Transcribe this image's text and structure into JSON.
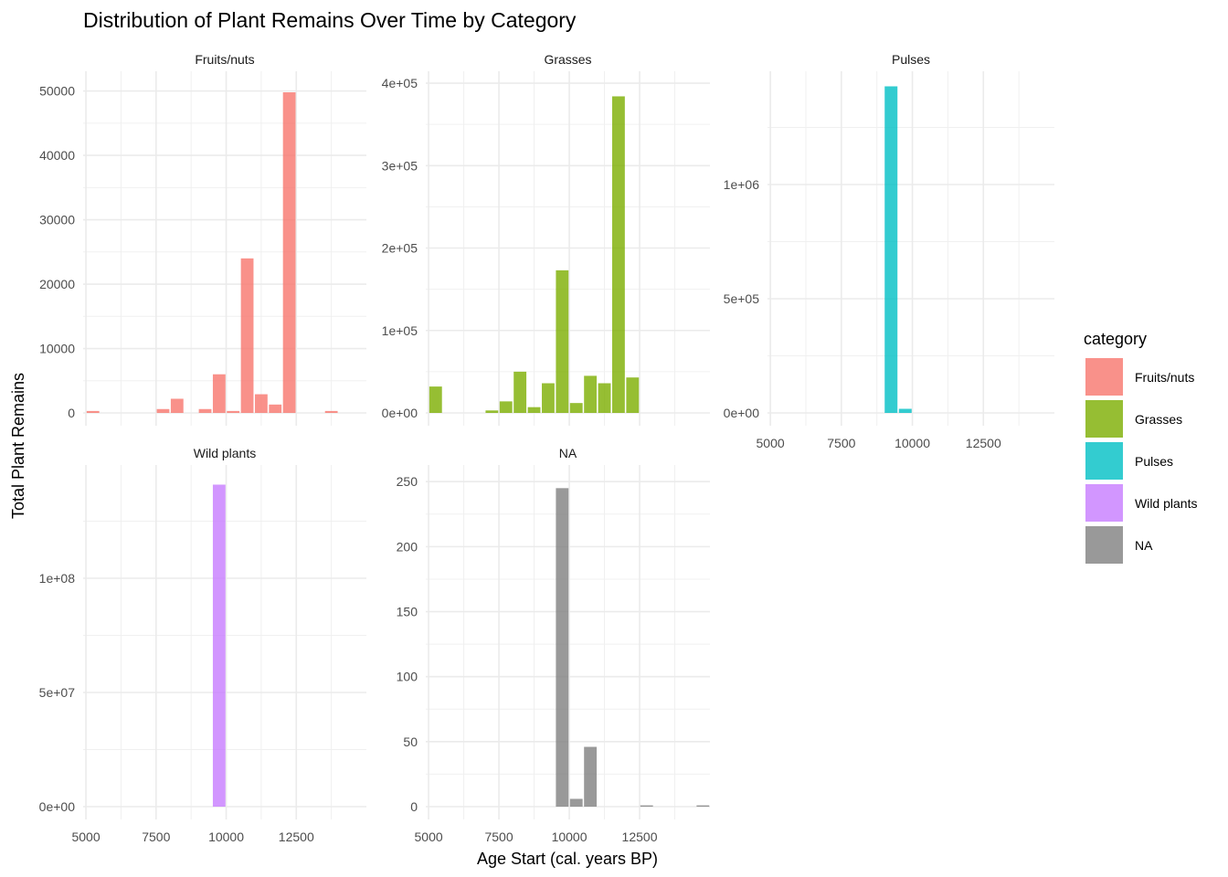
{
  "chart_data": {
    "type": "bar",
    "title": "Distribution of Plant Remains Over Time by Category",
    "xlabel": "Age Start (cal. years BP)",
    "ylabel": "Total Plant Remains",
    "xlim": [
      4900,
      15000
    ],
    "xticks": [
      5000,
      7500,
      10000,
      12500
    ],
    "x_tick_labels": [
      "5000",
      "7500",
      "10000",
      "12500"
    ],
    "grid": true,
    "legend": {
      "title": "category",
      "position": "right",
      "entries": [
        {
          "name": "Fruits/nuts",
          "color": "#F8766D"
        },
        {
          "name": "Grasses",
          "color": "#7CAE00"
        },
        {
          "name": "Pulses",
          "color": "#00BFC4"
        },
        {
          "name": "Wild plants",
          "color": "#C77CFF"
        },
        {
          "name": "NA",
          "color": "#7F7F7F"
        }
      ]
    },
    "facets": [
      {
        "name": "Fruits/nuts",
        "color": "#F8766D",
        "ylim": [
          0,
          52500
        ],
        "y_ticks": [
          0,
          10000,
          20000,
          30000,
          40000,
          50000
        ],
        "y_tick_labels": [
          "0",
          "10000",
          "20000",
          "30000",
          "40000",
          "50000"
        ],
        "bars": [
          {
            "x": 5250,
            "y": 300
          },
          {
            "x": 7750,
            "y": 600
          },
          {
            "x": 8250,
            "y": 2200
          },
          {
            "x": 9250,
            "y": 600
          },
          {
            "x": 9750,
            "y": 6000
          },
          {
            "x": 10250,
            "y": 300
          },
          {
            "x": 10750,
            "y": 24000
          },
          {
            "x": 11250,
            "y": 2900
          },
          {
            "x": 11750,
            "y": 1300
          },
          {
            "x": 12250,
            "y": 49800
          },
          {
            "x": 13750,
            "y": 300
          }
        ]
      },
      {
        "name": "Grasses",
        "color": "#7CAE00",
        "ylim": [
          0,
          410000
        ],
        "y_ticks": [
          0,
          100000,
          200000,
          300000,
          400000
        ],
        "y_tick_labels": [
          "0e+00",
          "1e+05",
          "2e+05",
          "3e+05",
          "4e+05"
        ],
        "bars": [
          {
            "x": 5250,
            "y": 32000
          },
          {
            "x": 7250,
            "y": 3000
          },
          {
            "x": 7750,
            "y": 14000
          },
          {
            "x": 8250,
            "y": 50000
          },
          {
            "x": 8750,
            "y": 7000
          },
          {
            "x": 9250,
            "y": 36000
          },
          {
            "x": 9750,
            "y": 173000
          },
          {
            "x": 10250,
            "y": 12000
          },
          {
            "x": 10750,
            "y": 45000
          },
          {
            "x": 11250,
            "y": 36000
          },
          {
            "x": 11750,
            "y": 384000
          },
          {
            "x": 12250,
            "y": 43000
          }
        ]
      },
      {
        "name": "Pulses",
        "color": "#00BFC4",
        "ylim": [
          0,
          1480000
        ],
        "y_ticks": [
          0,
          500000,
          1000000
        ],
        "y_tick_labels": [
          "0e+00",
          "5e+05",
          "1e+06"
        ],
        "bars": [
          {
            "x": 9250,
            "y": 1430000
          },
          {
            "x": 9750,
            "y": 18000
          }
        ]
      },
      {
        "name": "Wild plants",
        "color": "#C77CFF",
        "ylim": [
          0,
          148000000
        ],
        "y_ticks": [
          0,
          50000000,
          100000000
        ],
        "y_tick_labels": [
          "0e+00",
          "5e+07",
          "1e+08"
        ],
        "bars": [
          {
            "x": 9750,
            "y": 141000000
          }
        ]
      },
      {
        "name": "NA",
        "color": "#7F7F7F",
        "ylim": [
          0,
          260
        ],
        "y_ticks": [
          0,
          50,
          100,
          150,
          200,
          250
        ],
        "y_tick_labels": [
          "0",
          "50",
          "100",
          "150",
          "200",
          "250"
        ],
        "bars": [
          {
            "x": 9750,
            "y": 245
          },
          {
            "x": 10250,
            "y": 6
          },
          {
            "x": 10750,
            "y": 46
          },
          {
            "x": 12750,
            "y": 1
          },
          {
            "x": 14750,
            "y": 1
          }
        ]
      }
    ]
  }
}
